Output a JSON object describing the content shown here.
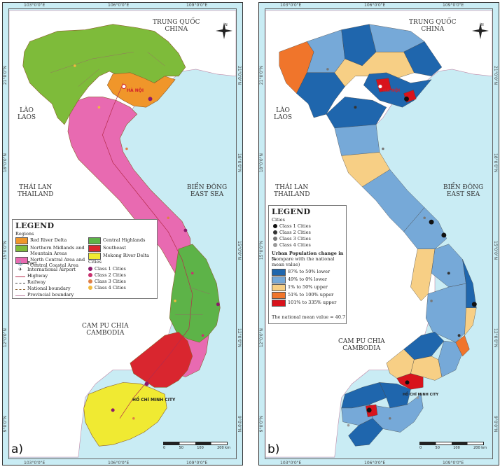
{
  "colors": {
    "sea": "#c9ecf4",
    "land_neighbor": "#ffffff",
    "red_river_delta": "#f0962a",
    "northern_midlands": "#7ebb3a",
    "north_central": "#e86ab1",
    "central_highlands": "#5db348",
    "southeast": "#d9262f",
    "mekong": "#f0ea32",
    "change_87_50_lower": "#1f66ad",
    "change_49_0_lower": "#76a9d8",
    "change_1_50_upper": "#f7cf85",
    "change_51_100_upper": "#f0752b",
    "change_101_335_upper": "#d8131c"
  },
  "panel_a": {
    "tag": "a)",
    "labels": {
      "china": "TRUNG QUỐC\nCHINA",
      "laos": "LÀO\nLAOS",
      "thailand": "THÁI LAN\nTHAILAND",
      "cambodia": "CAM PU CHIA\nCAMBODIA",
      "east_sea": "BIỂN ĐÔNG\nEAST SEA",
      "hanoi": "HÀ NỘI",
      "hcmc": "HỒ CHÍ MINH CITY"
    },
    "coords": {
      "top": [
        "103°0'0\"E",
        "106°0'0\"E",
        "109°0'0\"E"
      ],
      "bottom": [
        "103°0'0\"E",
        "106°0'0\"E",
        "109°0'0\"E"
      ],
      "left": [
        "21°0'0\"N",
        "18°0'0\"N",
        "15°0'0\"N",
        "12°0'0\"N",
        "9°0'0\"N"
      ],
      "right": [
        "21°0'0\"N",
        "18°0'0\"N",
        "15°0'0\"N",
        "12°0'0\"N",
        "9°0'0\"N"
      ]
    },
    "legend": {
      "title": "LEGEND",
      "regions_heading": "Regions",
      "regions": [
        {
          "label": "Red River Delta",
          "color": "#f0962a"
        },
        {
          "label": "Northern Midlands and Mountain Areas",
          "color": "#7ebb3a"
        },
        {
          "label": "North Central Area and Central Coastal Area",
          "color": "#e86ab1"
        },
        {
          "label": "Central Highlands",
          "color": "#5db348"
        },
        {
          "label": "Southeast",
          "color": "#d9262f"
        },
        {
          "label": "Mekong River Delta",
          "color": "#f0ea32"
        }
      ],
      "symbols": [
        {
          "label": "Port",
          "icon": "anchor-icon"
        },
        {
          "label": "International Airport",
          "icon": "airplane-icon"
        },
        {
          "label": "Highway",
          "icon": "highway-line"
        },
        {
          "label": "Railway",
          "icon": "railway-line"
        },
        {
          "label": "National boundary",
          "icon": "national-boundary-line"
        },
        {
          "label": "Provincial boundary",
          "icon": "provincial-boundary-line"
        }
      ],
      "cities_heading": "Cities",
      "cities": [
        {
          "label": "Class 1 Cities",
          "color": "#8b1a6b"
        },
        {
          "label": "Class 2 Cities",
          "color": "#c9306e"
        },
        {
          "label": "Class 3 Cities",
          "color": "#e07f46"
        },
        {
          "label": "Class 4 Cities",
          "color": "#f1ba3e"
        }
      ]
    },
    "scale": {
      "ticks": [
        "0",
        "50",
        "100",
        "200 km"
      ]
    }
  },
  "panel_b": {
    "tag": "b)",
    "labels": {
      "china": "TRUNG QUỐC\nCHINA",
      "laos": "LÀO\nLAOS",
      "thailand": "THÁI LAN\nTHAILAND",
      "cambodia": "CAM PU CHIA\nCAMBODIA",
      "east_sea": "BIỂN ĐÔNG\nEAST SEA",
      "hanoi": "HÀ NỘI",
      "hcmc": "HỒ CHÍ MINH CITY"
    },
    "coords": {
      "top": [
        "103°0'0\"E",
        "106°0'0\"E",
        "109°0'0\"E"
      ],
      "bottom": [
        "103°0'0\"E",
        "106°0'0\"E",
        "109°0'0\"E"
      ],
      "left": [
        "21°0'0\"N",
        "18°0'0\"N",
        "15°0'0\"N",
        "12°0'0\"N",
        "9°0'0\"N"
      ],
      "right": [
        "21°0'0\"N",
        "18°0'0\"N",
        "15°0'0\"N",
        "12°0'0\"N",
        "9°0'0\"N"
      ]
    },
    "legend": {
      "title": "LEGEND",
      "cities_heading": "Cities",
      "cities": [
        {
          "label": "Class 1 Cities",
          "color": "#111111"
        },
        {
          "label": "Class 2 Cities",
          "color": "#333333"
        },
        {
          "label": "Class 3 Cities",
          "color": "#777777"
        },
        {
          "label": "Class 4 Cities",
          "color": "#9a9a9a"
        }
      ],
      "change_heading": "Urban Population change in %",
      "change_subheading": "(compare with the national mean value)",
      "changes": [
        {
          "label": "87% to 50% lower",
          "color": "#1f66ad"
        },
        {
          "label": "49% to 0% lower",
          "color": "#76a9d8"
        },
        {
          "label": "1% to 50% upper",
          "color": "#f7cf85"
        },
        {
          "label": "51% to 100% upper",
          "color": "#f0752b"
        },
        {
          "label": "101% to 335% upper",
          "color": "#d8131c"
        }
      ],
      "mean_note": "The national mean value = 40.7"
    },
    "scale": {
      "ticks": [
        "0",
        "50",
        "100",
        "200 km"
      ]
    }
  }
}
